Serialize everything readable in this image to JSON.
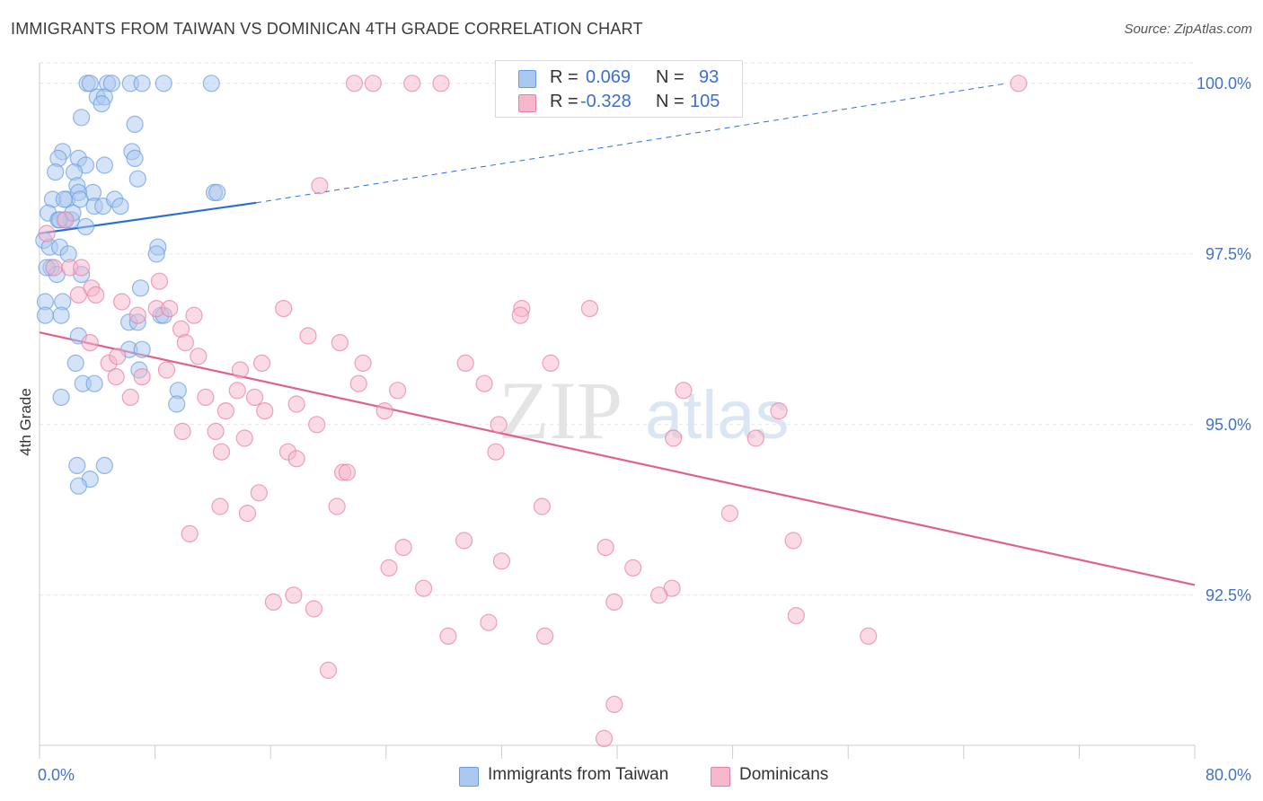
{
  "title": "IMMIGRANTS FROM TAIWAN VS DOMINICAN 4TH GRADE CORRELATION CHART",
  "source": "Source: ZipAtlas.com",
  "watermark": {
    "zip": "ZIP",
    "atlas": "atlas"
  },
  "legend": {
    "rows": [
      {
        "r_label": "R =",
        "r_value": "0.069",
        "n_label": "N =",
        "n_value": "93",
        "color": "#aac8f0"
      },
      {
        "r_label": "R =",
        "r_value": "-0.328",
        "n_label": "N =",
        "n_value": "105",
        "color": "#f6b6cb"
      }
    ]
  },
  "bottom_legend": [
    {
      "label": "Immigrants from Taiwan",
      "color": "#aac8f0"
    },
    {
      "label": "Dominicans",
      "color": "#f6b6cb"
    }
  ],
  "chart_data": {
    "type": "scatter",
    "ylabel": "4th Grade",
    "xlim": [
      0,
      80
    ],
    "ylim": [
      90.3,
      100.3
    ],
    "x_tick_labels": [
      {
        "value": 0,
        "label": "0.0%"
      },
      {
        "value": 80,
        "label": "80.0%"
      }
    ],
    "y_tick_labels": [
      {
        "value": 100.0,
        "label": "100.0%"
      },
      {
        "value": 97.5,
        "label": "97.5%"
      },
      {
        "value": 95.0,
        "label": "95.0%"
      },
      {
        "value": 92.5,
        "label": "92.5%"
      }
    ],
    "grid": true,
    "series": [
      {
        "name": "Immigrants from Taiwan",
        "color": "#6a9de0",
        "fill": "#aac8f0",
        "trend": {
          "x0": 0,
          "y0": 97.8,
          "x1": 15,
          "y1": 98.25,
          "dash_to_x": 67,
          "dash_to_y": 100.0
        },
        "points": [
          [
            3.3,
            100
          ],
          [
            3.5,
            100
          ],
          [
            4.7,
            100
          ],
          [
            5.0,
            100
          ],
          [
            6.3,
            100
          ],
          [
            7.1,
            100
          ],
          [
            8.6,
            100
          ],
          [
            11.9,
            100
          ],
          [
            4.0,
            99.8
          ],
          [
            4.5,
            99.8
          ],
          [
            4.3,
            99.7
          ],
          [
            2.9,
            99.5
          ],
          [
            6.6,
            99.4
          ],
          [
            1.6,
            99.0
          ],
          [
            1.3,
            98.9
          ],
          [
            2.7,
            98.9
          ],
          [
            3.2,
            98.8
          ],
          [
            6.4,
            99.0
          ],
          [
            6.6,
            98.9
          ],
          [
            1.1,
            98.7
          ],
          [
            2.4,
            98.7
          ],
          [
            4.5,
            98.8
          ],
          [
            6.8,
            98.6
          ],
          [
            2.6,
            98.5
          ],
          [
            3.7,
            98.4
          ],
          [
            1.9,
            98.3
          ],
          [
            2.7,
            98.4
          ],
          [
            0.9,
            98.3
          ],
          [
            1.7,
            98.3
          ],
          [
            2.8,
            98.3
          ],
          [
            3.8,
            98.2
          ],
          [
            4.4,
            98.2
          ],
          [
            5.2,
            98.3
          ],
          [
            5.6,
            98.2
          ],
          [
            12.1,
            98.4
          ],
          [
            12.3,
            98.4
          ],
          [
            0.6,
            98.1
          ],
          [
            1.7,
            98.0
          ],
          [
            2.2,
            98.0
          ],
          [
            2.3,
            98.1
          ],
          [
            1.3,
            98.0
          ],
          [
            1.4,
            98.0
          ],
          [
            3.2,
            97.9
          ],
          [
            0.3,
            97.7
          ],
          [
            0.7,
            97.6
          ],
          [
            1.4,
            97.6
          ],
          [
            2.0,
            97.5
          ],
          [
            8.2,
            97.6
          ],
          [
            8.1,
            97.5
          ],
          [
            0.8,
            97.3
          ],
          [
            1.2,
            97.2
          ],
          [
            0.5,
            97.3
          ],
          [
            2.9,
            97.2
          ],
          [
            7.0,
            97.0
          ],
          [
            0.4,
            96.8
          ],
          [
            1.6,
            96.8
          ],
          [
            1.5,
            96.6
          ],
          [
            0.4,
            96.6
          ],
          [
            6.2,
            96.5
          ],
          [
            6.8,
            96.5
          ],
          [
            8.4,
            96.6
          ],
          [
            8.6,
            96.6
          ],
          [
            2.7,
            96.3
          ],
          [
            6.2,
            96.1
          ],
          [
            7.1,
            96.1
          ],
          [
            2.5,
            95.9
          ],
          [
            6.9,
            95.8
          ],
          [
            3.0,
            95.6
          ],
          [
            3.8,
            95.6
          ],
          [
            9.6,
            95.5
          ],
          [
            1.5,
            95.4
          ],
          [
            9.5,
            95.3
          ],
          [
            2.6,
            94.4
          ],
          [
            4.5,
            94.4
          ],
          [
            3.5,
            94.2
          ],
          [
            2.7,
            94.1
          ]
        ]
      },
      {
        "name": "Dominicans",
        "color": "#e87ea3",
        "fill": "#f6b6cb",
        "trend": {
          "x0": 0,
          "y0": 96.35,
          "x1": 80,
          "y1": 92.65
        },
        "points": [
          [
            21.8,
            100
          ],
          [
            23.1,
            100
          ],
          [
            25.8,
            100
          ],
          [
            27.8,
            100
          ],
          [
            67.8,
            100
          ],
          [
            19.4,
            98.5
          ],
          [
            1.8,
            98.0
          ],
          [
            0.5,
            97.8
          ],
          [
            1.0,
            97.3
          ],
          [
            2.1,
            97.3
          ],
          [
            2.9,
            97.3
          ],
          [
            8.3,
            97.1
          ],
          [
            3.6,
            97.0
          ],
          [
            3.9,
            96.9
          ],
          [
            2.7,
            96.9
          ],
          [
            5.7,
            96.8
          ],
          [
            16.9,
            96.7
          ],
          [
            8.1,
            96.7
          ],
          [
            9.0,
            96.7
          ],
          [
            6.8,
            96.6
          ],
          [
            10.7,
            96.6
          ],
          [
            9.8,
            96.4
          ],
          [
            33.4,
            96.7
          ],
          [
            33.3,
            96.6
          ],
          [
            38.1,
            96.7
          ],
          [
            18.6,
            96.3
          ],
          [
            20.8,
            96.2
          ],
          [
            10.1,
            96.2
          ],
          [
            3.5,
            96.2
          ],
          [
            11.0,
            96.0
          ],
          [
            4.8,
            95.9
          ],
          [
            5.4,
            96.0
          ],
          [
            13.9,
            95.8
          ],
          [
            15.4,
            95.9
          ],
          [
            22.4,
            95.9
          ],
          [
            29.5,
            95.9
          ],
          [
            35.4,
            95.9
          ],
          [
            5.3,
            95.7
          ],
          [
            7.1,
            95.7
          ],
          [
            8.8,
            95.8
          ],
          [
            22.1,
            95.6
          ],
          [
            30.8,
            95.6
          ],
          [
            13.7,
            95.5
          ],
          [
            24.8,
            95.5
          ],
          [
            44.6,
            95.5
          ],
          [
            6.3,
            95.4
          ],
          [
            11.5,
            95.4
          ],
          [
            14.9,
            95.4
          ],
          [
            17.8,
            95.3
          ],
          [
            12.9,
            95.2
          ],
          [
            15.6,
            95.2
          ],
          [
            23.9,
            95.2
          ],
          [
            51.2,
            95.2
          ],
          [
            9.9,
            94.9
          ],
          [
            12.2,
            94.9
          ],
          [
            19.2,
            95.0
          ],
          [
            31.8,
            95.0
          ],
          [
            14.2,
            94.8
          ],
          [
            43.9,
            94.8
          ],
          [
            49.6,
            94.8
          ],
          [
            17.2,
            94.6
          ],
          [
            12.6,
            94.6
          ],
          [
            17.8,
            94.5
          ],
          [
            31.6,
            94.6
          ],
          [
            21.0,
            94.3
          ],
          [
            21.3,
            94.3
          ],
          [
            15.2,
            94.0
          ],
          [
            12.5,
            93.8
          ],
          [
            20.6,
            93.8
          ],
          [
            14.4,
            93.7
          ],
          [
            34.8,
            93.8
          ],
          [
            47.8,
            93.7
          ],
          [
            10.4,
            93.4
          ],
          [
            25.2,
            93.2
          ],
          [
            29.4,
            93.3
          ],
          [
            39.2,
            93.2
          ],
          [
            52.2,
            93.3
          ],
          [
            32.0,
            93.0
          ],
          [
            24.2,
            92.9
          ],
          [
            41.1,
            92.9
          ],
          [
            26.6,
            92.6
          ],
          [
            43.8,
            92.6
          ],
          [
            17.6,
            92.5
          ],
          [
            42.9,
            92.5
          ],
          [
            16.2,
            92.4
          ],
          [
            39.8,
            92.4
          ],
          [
            19.0,
            92.3
          ],
          [
            52.4,
            92.2
          ],
          [
            28.3,
            91.9
          ],
          [
            31.1,
            92.1
          ],
          [
            35.0,
            91.9
          ],
          [
            57.4,
            91.9
          ],
          [
            20.0,
            91.4
          ],
          [
            39.8,
            90.9
          ],
          [
            39.1,
            90.4
          ]
        ]
      }
    ]
  }
}
